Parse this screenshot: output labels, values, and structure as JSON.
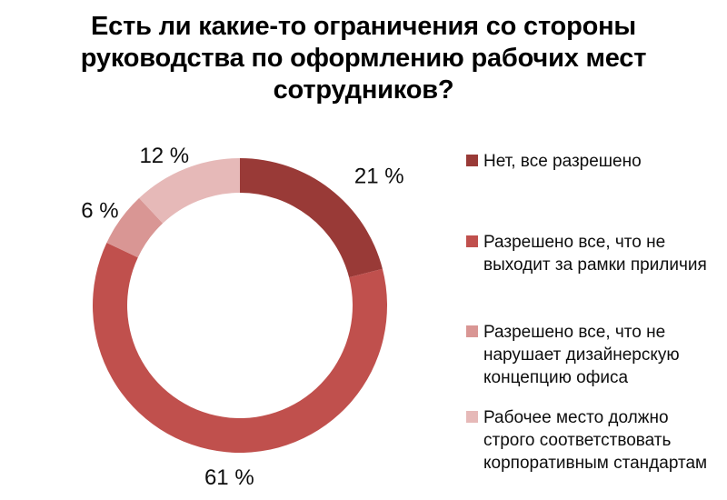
{
  "chart_data": {
    "type": "pie",
    "subtype": "doughnut",
    "title": "Есть ли какие-то ограничения со стороны\nруководства по оформлению рабочих мест\nсотрудников?",
    "unit": "%",
    "direction": "clockwise",
    "start_angle_deg": 0,
    "legend_position": "right",
    "data_labels": "outside",
    "text_color": "#0d0d0d",
    "segments": [
      {
        "label": "Нет, все разрешено",
        "label_wrapped": "Нет, все разрешено",
        "value": 21,
        "color": "#993A37"
      },
      {
        "label": "Разрешено все, что не выходит за рамки приличия",
        "label_wrapped": "Разрешено все, что не\nвыходит за рамки приличия",
        "value": 61,
        "color": "#C0504D"
      },
      {
        "label": "Разрешено все, что не нарушает дизайнерскую концепцию офиса",
        "label_wrapped": "Разрешено все, что не\nнарушает дизайнерскую\nконцепцию офиса",
        "value": 6,
        "color": "#D99694"
      },
      {
        "label": "Рабочее место должно строго соответствовать корпоративным стандартам",
        "label_wrapped": "Рабочее место должно\nстрого соответствовать\nкорпоративным стандартам",
        "value": 12,
        "color": "#E6B9B8"
      }
    ]
  }
}
